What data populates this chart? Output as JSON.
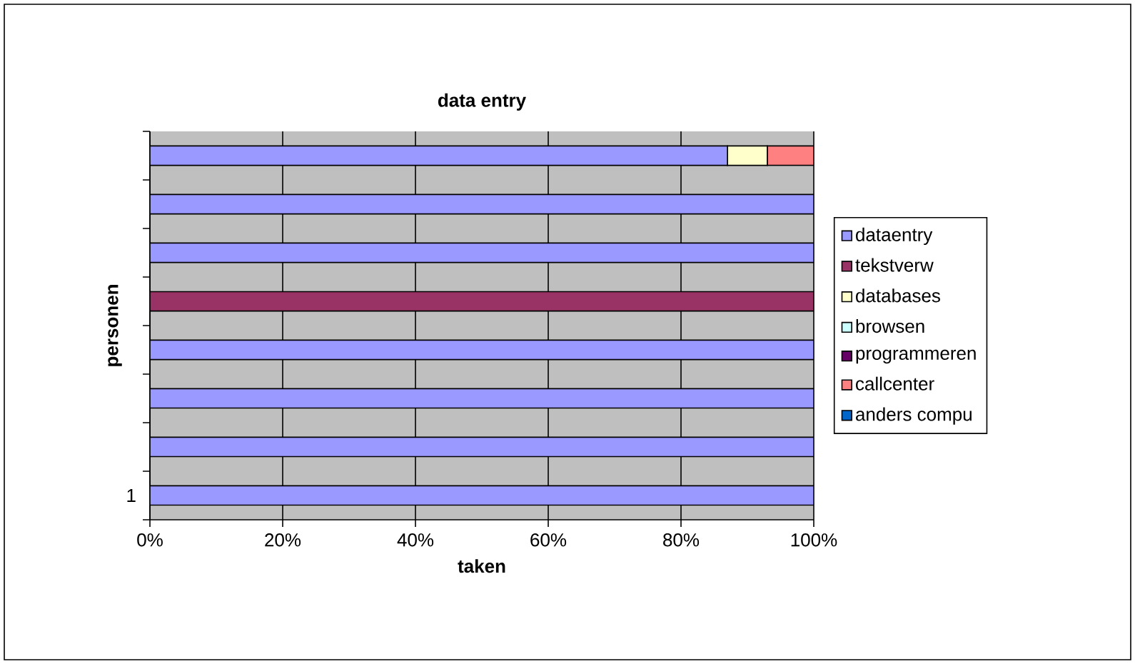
{
  "chart_data": {
    "type": "bar",
    "orientation": "horizontal",
    "stacked": true,
    "title": "data entry",
    "xlabel": "taken",
    "ylabel": "personen",
    "categories": [
      null,
      null,
      null,
      null,
      null,
      null,
      null,
      "1"
    ],
    "series": [
      {
        "name": "dataentry",
        "color": "#9999ff",
        "values": [
          87,
          100,
          100,
          0,
          100,
          100,
          100,
          100
        ]
      },
      {
        "name": "tekstverw",
        "color": "#993366",
        "values": [
          0,
          0,
          0,
          100,
          0,
          0,
          0,
          0
        ]
      },
      {
        "name": "databases",
        "color": "#ffffcc",
        "values": [
          6,
          0,
          0,
          0,
          0,
          0,
          0,
          0
        ]
      },
      {
        "name": "browsen",
        "color": "#ccffff",
        "values": [
          0,
          0,
          0,
          0,
          0,
          0,
          0,
          0
        ]
      },
      {
        "name": "programmeren",
        "color": "#660066",
        "values": [
          0,
          0,
          0,
          0,
          0,
          0,
          0,
          0
        ]
      },
      {
        "name": "callcenter",
        "color": "#ff8080",
        "values": [
          7,
          0,
          0,
          0,
          0,
          0,
          0,
          0
        ]
      },
      {
        "name": "anders compu",
        "color": "#0066cc",
        "values": [
          0,
          0,
          0,
          0,
          0,
          0,
          0,
          0
        ]
      }
    ],
    "xlim": [
      0,
      100
    ],
    "xticks": [
      {
        "value": 0,
        "label": "0%"
      },
      {
        "value": 20,
        "label": "20%"
      },
      {
        "value": 40,
        "label": "40%"
      },
      {
        "value": 60,
        "label": "60%"
      },
      {
        "value": 80,
        "label": "80%"
      },
      {
        "value": 100,
        "label": "100%"
      }
    ],
    "grid": "x",
    "legend": "right"
  }
}
